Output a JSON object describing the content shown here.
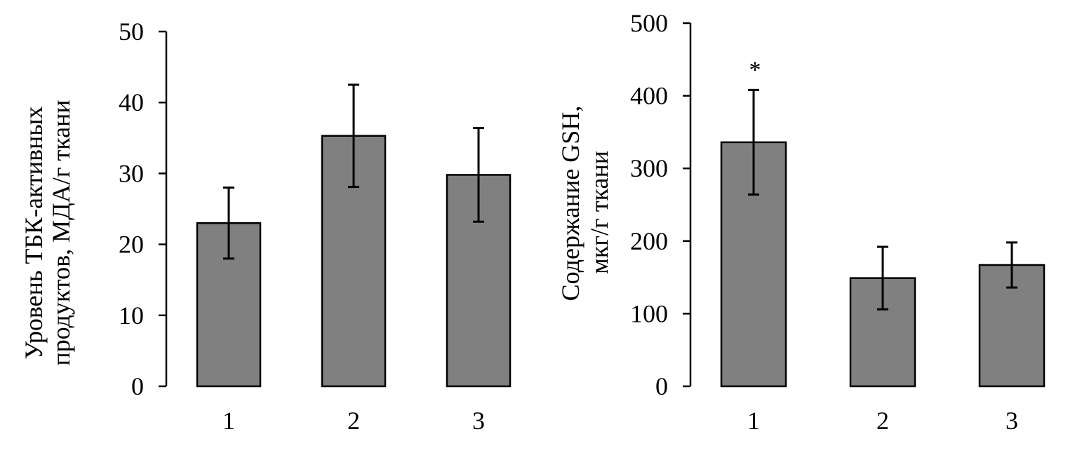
{
  "colors": {
    "bar_fill": "#808080",
    "bar_stroke": "#000000",
    "axis": "#000000",
    "background": "#ffffff"
  },
  "chart_data": [
    {
      "type": "bar",
      "categories": [
        "1",
        "2",
        "3"
      ],
      "values": [
        23.0,
        35.3,
        29.8
      ],
      "errors": [
        5.0,
        7.2,
        6.6
      ],
      "markers": [
        "",
        "",
        ""
      ],
      "title": "",
      "xlabel": "",
      "ylabel": [
        "Уровень ТБК-активных",
        "продуктов, МДА/г ткани"
      ],
      "ylim": [
        0,
        50
      ],
      "yticks": [
        0,
        10,
        20,
        30,
        40,
        50
      ],
      "grid": false,
      "legend": "none"
    },
    {
      "type": "bar",
      "categories": [
        "1",
        "2",
        "3"
      ],
      "values": [
        336,
        149,
        167
      ],
      "errors": [
        72,
        43,
        31
      ],
      "markers": [
        "*",
        "",
        ""
      ],
      "title": "",
      "xlabel": "",
      "ylabel": [
        "Содержание GSH,",
        "мкг/г ткани"
      ],
      "ylim": [
        0,
        500
      ],
      "yticks": [
        0,
        100,
        200,
        300,
        400,
        500
      ],
      "grid": false,
      "legend": "none"
    }
  ]
}
